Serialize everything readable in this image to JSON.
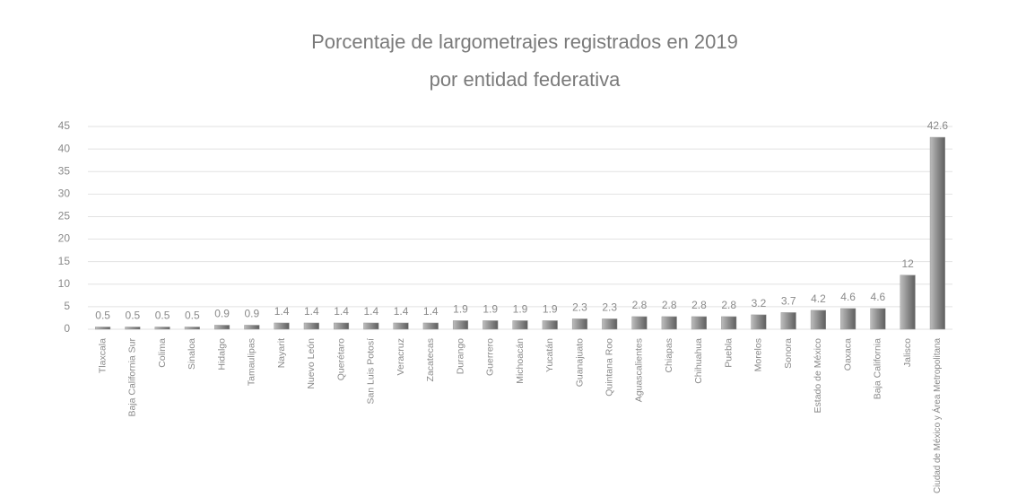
{
  "chart_data": {
    "type": "bar",
    "title": [
      "Porcentaje de largometrajes registrados en 2019",
      "por entidad federativa"
    ],
    "categories": [
      "Tlaxcala",
      "Baja California Sur",
      "Colima",
      "Sinaloa",
      "Hidalgo",
      "Tamaulipas",
      "Nayarit",
      "Nuevo León",
      "Querétaro",
      "San Luis Potosí",
      "Veracruz",
      "Zacatecas",
      "Durango",
      "Guerrero",
      "Michoacán",
      "Yucatán",
      "Guanajuato",
      "Quintana Roo",
      "Aguascalientes",
      "Chiapas",
      "Chihuahua",
      "Puebla",
      "Morelos",
      "Sonora",
      "Estado de México",
      "Oaxaca",
      "Baja California",
      "Jalisco",
      "Ciudad de México y Área Metropolitana"
    ],
    "values": [
      0.5,
      0.5,
      0.5,
      0.5,
      0.9,
      0.9,
      1.4,
      1.4,
      1.4,
      1.4,
      1.4,
      1.4,
      1.9,
      1.9,
      1.9,
      1.9,
      2.3,
      2.3,
      2.8,
      2.8,
      2.8,
      2.8,
      3.2,
      3.7,
      4.2,
      4.6,
      4.6,
      12,
      42.6
    ],
    "color": "#9a9a9a",
    "ylim": [
      0,
      45
    ],
    "yticks": [
      0,
      5,
      10,
      15,
      20,
      25,
      30,
      35,
      40,
      45
    ],
    "grid": true
  }
}
